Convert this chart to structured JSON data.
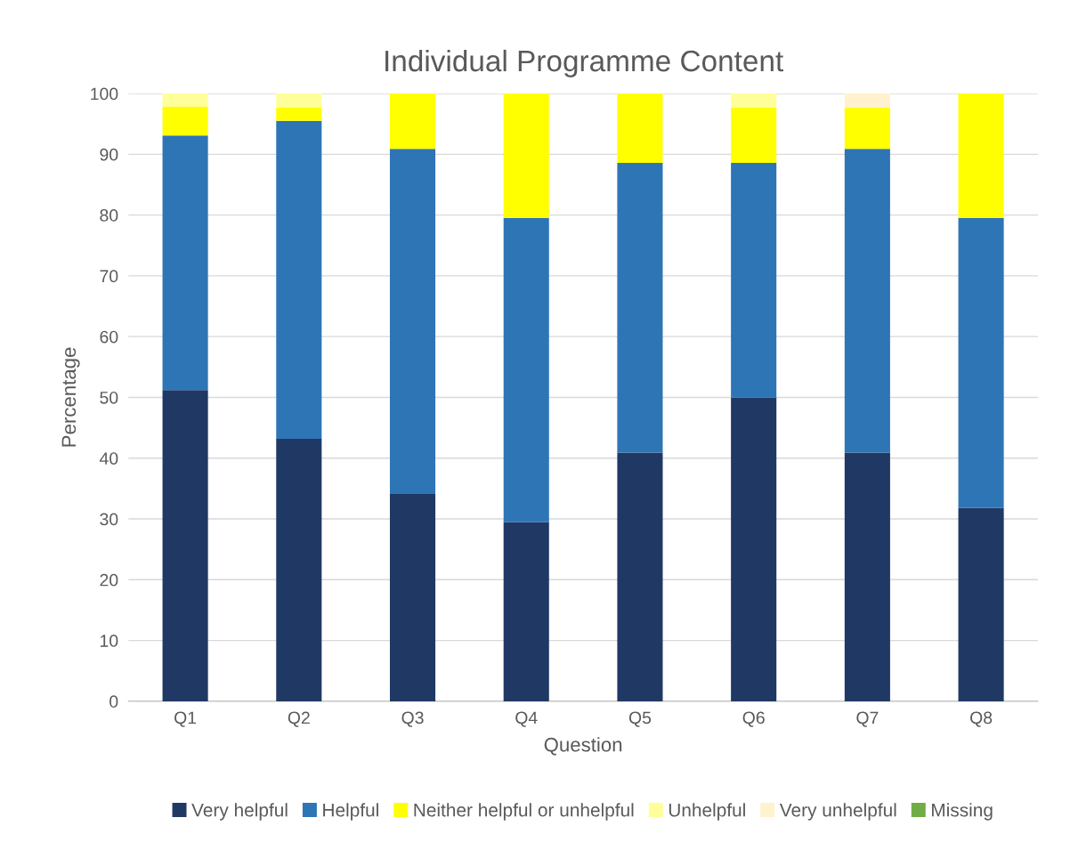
{
  "chart_data": {
    "type": "bar",
    "title": "Individual Programme Content",
    "xlabel": "Question",
    "ylabel": "Percentage",
    "categories": [
      "Q1",
      "Q2",
      "Q3",
      "Q4",
      "Q5",
      "Q6",
      "Q7",
      "Q8"
    ],
    "stacked": true,
    "series": [
      {
        "name": "Very helpful",
        "color": "#203864",
        "values": [
          51.2,
          43.2,
          34.1,
          29.5,
          40.9,
          50.0,
          40.9,
          31.8
        ]
      },
      {
        "name": "Helpful",
        "color": "#2e75b6",
        "values": [
          41.9,
          52.3,
          56.8,
          50.0,
          47.7,
          38.6,
          50.0,
          47.7
        ]
      },
      {
        "name": "Neither helpful or unhelpful",
        "color": "#ffff00",
        "values": [
          4.7,
          2.2,
          9.1,
          20.5,
          11.4,
          9.1,
          6.8,
          20.5
        ]
      },
      {
        "name": "Unhelpful",
        "color": "#ffff99",
        "values": [
          2.2,
          2.3,
          0,
          0,
          0,
          2.3,
          0,
          0
        ]
      },
      {
        "name": "Very unhelpful",
        "color": "#fff2cc",
        "values": [
          0,
          0,
          0,
          0,
          0,
          0,
          2.3,
          0
        ]
      },
      {
        "name": "Missing",
        "color": "#70ad47",
        "values": [
          0,
          0,
          0,
          0,
          0,
          0,
          0,
          0
        ]
      }
    ],
    "ylim": [
      0,
      100
    ],
    "yticks": [
      0,
      10,
      20,
      30,
      40,
      50,
      60,
      70,
      80,
      90,
      100
    ],
    "grid": "y",
    "legend": "bottom"
  }
}
